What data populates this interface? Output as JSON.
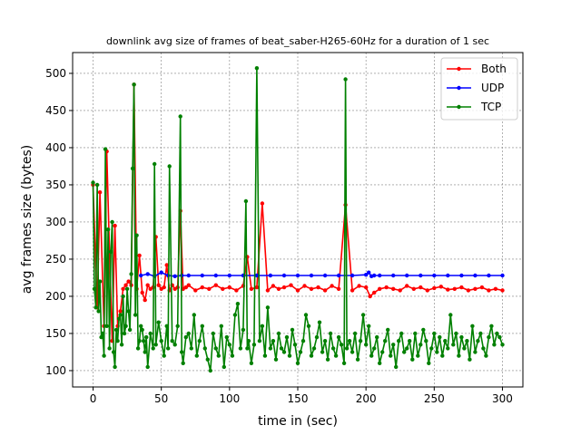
{
  "chart_data": {
    "type": "line",
    "title": "downlink avg size of frames of beat_saber-H265-60Hz for a duration of 1 sec",
    "xlabel": "time in (sec)",
    "ylabel": "avg frames size (bytes)",
    "xlim": [
      -15,
      315
    ],
    "ylim": [
      78,
      528
    ],
    "xticks": [
      0,
      50,
      100,
      150,
      200,
      250,
      300
    ],
    "yticks": [
      100,
      150,
      200,
      250,
      300,
      350,
      400,
      450,
      500
    ],
    "grid": true,
    "legend_position": "top-right",
    "series": [
      {
        "name": "Both",
        "color": "#ff0000",
        "x": [
          0,
          3,
          5,
          8,
          10,
          12,
          14,
          16,
          18,
          20,
          22,
          24,
          26,
          28,
          30,
          32,
          34,
          36,
          38,
          40,
          42,
          44,
          46,
          48,
          50,
          52,
          54,
          56,
          58,
          60,
          62,
          64,
          66,
          68,
          70,
          75,
          80,
          85,
          90,
          95,
          100,
          105,
          110,
          113,
          116,
          120,
          124,
          128,
          132,
          136,
          140,
          145,
          150,
          155,
          160,
          165,
          170,
          175,
          180,
          185,
          190,
          195,
          200,
          203,
          206,
          210,
          215,
          220,
          225,
          230,
          235,
          240,
          245,
          250,
          255,
          260,
          265,
          270,
          275,
          280,
          285,
          290,
          295,
          300
        ],
        "y": [
          350,
          185,
          340,
          160,
          395,
          260,
          140,
          295,
          160,
          180,
          210,
          215,
          220,
          215,
          485,
          210,
          255,
          205,
          195,
          215,
          210,
          212,
          280,
          215,
          210,
          212,
          242,
          208,
          215,
          210,
          212,
          315,
          210,
          212,
          215,
          208,
          212,
          210,
          215,
          210,
          212,
          208,
          214,
          253,
          210,
          212,
          325,
          208,
          214,
          210,
          212,
          215,
          208,
          214,
          210,
          212,
          208,
          214,
          210,
          323,
          208,
          214,
          212,
          200,
          205,
          210,
          212,
          210,
          208,
          214,
          210,
          212,
          208,
          211,
          213,
          209,
          210,
          212,
          208,
          210,
          212,
          208,
          210,
          208
        ]
      },
      {
        "name": "UDP",
        "color": "#0000ff",
        "x": [
          35,
          40,
          45,
          50,
          55,
          60,
          65,
          70,
          80,
          90,
          100,
          110,
          120,
          130,
          140,
          150,
          160,
          170,
          180,
          190,
          200,
          202,
          204,
          206,
          210,
          220,
          230,
          240,
          250,
          260,
          270,
          280,
          290,
          300
        ],
        "y": [
          228,
          230,
          227,
          232,
          228,
          227,
          228,
          228,
          228,
          228,
          228,
          228,
          228,
          228,
          228,
          228,
          228,
          228,
          228,
          228,
          229,
          232,
          227,
          228,
          228,
          228,
          228,
          228,
          228,
          228,
          228,
          228,
          228,
          228
        ]
      },
      {
        "name": "TCP",
        "color": "#008000",
        "x": [
          0,
          1,
          2,
          3,
          4,
          5,
          6,
          7,
          8,
          9,
          10,
          11,
          12,
          13,
          14,
          15,
          16,
          17,
          18,
          19,
          20,
          21,
          22,
          23,
          24,
          25,
          26,
          27,
          28,
          29,
          30,
          31,
          32,
          33,
          34,
          35,
          36,
          37,
          38,
          39,
          40,
          42,
          44,
          45,
          46,
          48,
          50,
          52,
          54,
          55,
          56,
          58,
          60,
          62,
          64,
          65,
          66,
          68,
          70,
          72,
          74,
          76,
          78,
          80,
          82,
          84,
          86,
          88,
          90,
          92,
          94,
          96,
          98,
          100,
          102,
          104,
          106,
          108,
          110,
          112,
          113,
          114,
          116,
          118,
          120,
          122,
          124,
          126,
          128,
          130,
          132,
          134,
          136,
          138,
          140,
          142,
          144,
          146,
          148,
          150,
          152,
          154,
          156,
          158,
          160,
          162,
          164,
          166,
          168,
          170,
          172,
          174,
          176,
          178,
          180,
          182,
          184,
          185,
          186,
          188,
          190,
          192,
          194,
          196,
          198,
          200,
          202,
          204,
          206,
          208,
          210,
          212,
          214,
          216,
          218,
          220,
          222,
          224,
          226,
          228,
          230,
          232,
          234,
          236,
          238,
          240,
          242,
          244,
          246,
          248,
          250,
          252,
          254,
          256,
          258,
          260,
          262,
          264,
          266,
          268,
          270,
          272,
          274,
          276,
          278,
          280,
          282,
          284,
          286,
          288,
          290,
          292,
          294,
          296,
          298,
          300
        ],
        "y": [
          353,
          210,
          185,
          350,
          180,
          220,
          145,
          150,
          120,
          398,
          160,
          290,
          130,
          260,
          300,
          125,
          105,
          155,
          140,
          170,
          175,
          135,
          200,
          150,
          160,
          210,
          180,
          155,
          230,
          372,
          485,
          175,
          282,
          130,
          140,
          160,
          155,
          140,
          125,
          145,
          105,
          150,
          130,
          378,
          135,
          165,
          140,
          120,
          160,
          130,
          375,
          140,
          135,
          160,
          442,
          125,
          110,
          145,
          150,
          130,
          175,
          120,
          140,
          160,
          130,
          115,
          100,
          150,
          130,
          120,
          160,
          105,
          145,
          135,
          120,
          175,
          190,
          130,
          155,
          328,
          130,
          140,
          110,
          135,
          507,
          140,
          160,
          120,
          185,
          130,
          140,
          115,
          150,
          130,
          125,
          145,
          120,
          155,
          135,
          110,
          125,
          140,
          175,
          160,
          120,
          130,
          145,
          165,
          125,
          140,
          115,
          150,
          130,
          120,
          145,
          135,
          110,
          492,
          130,
          140,
          125,
          150,
          115,
          140,
          175,
          135,
          160,
          120,
          130,
          145,
          110,
          125,
          140,
          155,
          120,
          135,
          105,
          140,
          150,
          125,
          130,
          140,
          115,
          150,
          120,
          135,
          155,
          140,
          110,
          130,
          150,
          125,
          145,
          120,
          140,
          130,
          175,
          135,
          150,
          120,
          145,
          130,
          140,
          115,
          160,
          125,
          140,
          150,
          130,
          120,
          145,
          160,
          135,
          150,
          145,
          135
        ]
      }
    ]
  }
}
